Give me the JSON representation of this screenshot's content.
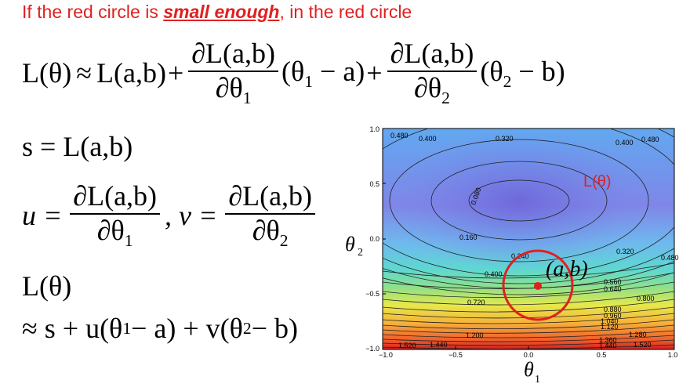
{
  "headline": {
    "before": "If the red circle is ",
    "emphasis": "small enough",
    "after": ", in the red circle"
  },
  "equations": {
    "taylor_lhs": "L(θ)",
    "approx": "≈",
    "taylor_term0": "L(a,b)",
    "plus": "+",
    "partial_num": "∂L(a,b)",
    "partial_den1": "∂θ",
    "partial_den2": "∂θ",
    "sub1": "1",
    "sub2": "2",
    "paren1": "(θ",
    "paren1_end": " − a)",
    "paren2": "(θ",
    "paren2_end": " − b)",
    "s_def": "s = L(a,b)",
    "u_lhs": "u =",
    "v_lhs": ", v =",
    "L_theta": "L(θ)",
    "final_approx": "≈ s + u(θ",
    "final_mid": " − a) + v(θ",
    "final_end": " − b)"
  },
  "plot": {
    "legend_label": "L(θ)",
    "point_label": "(a,b)",
    "x_axis_label": "θ",
    "x_axis_sub": "1",
    "y_axis_label": "θ",
    "y_axis_sub": "2",
    "x_ticks": [
      "−1.0",
      "−0.5",
      "0.0",
      "0.5",
      "1.0"
    ],
    "y_ticks": [
      "1.0",
      "0.5",
      "0.0",
      "−0.5",
      "−1.0"
    ],
    "contour_labels": [
      "0.480",
      "0.400",
      "0.320",
      "0.400",
      "0.480",
      "0.080",
      "0.160",
      "0.240",
      "0.320",
      "0.480",
      "0.400",
      "0.560",
      "0.640",
      "0.720",
      "0.800",
      "0.880",
      "0.960",
      "1.040",
      "1.120",
      "1.200",
      "1.280",
      "1.360",
      "1.440",
      "1.520",
      "1.440",
      "1.520"
    ],
    "colors": {
      "accent_red": "#e02020",
      "circle": "#e02020"
    }
  }
}
